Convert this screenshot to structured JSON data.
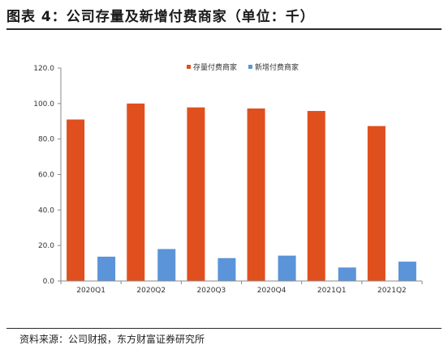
{
  "header": {
    "title": "图表 4：公司存量及新增付费商家（单位：千）"
  },
  "footer": {
    "source": "资料来源：公司财报，东方财富证券研究所"
  },
  "chart_data": {
    "type": "bar",
    "categories": [
      "2020Q1",
      "2020Q2",
      "2020Q3",
      "2020Q4",
      "2021Q1",
      "2021Q2"
    ],
    "series": [
      {
        "name": "存量付费商家",
        "color": "#e0501e",
        "values": [
          91.0,
          100.0,
          97.8,
          97.2,
          95.8,
          87.3
        ]
      },
      {
        "name": "新增付费商家",
        "color": "#5b94d9",
        "values": [
          13.7,
          18.0,
          12.9,
          14.3,
          7.6,
          10.9
        ]
      }
    ],
    "ylim": [
      0,
      120
    ],
    "yticks": [
      "0.0",
      "20.0",
      "40.0",
      "60.0",
      "80.0",
      "100.0",
      "120.0"
    ],
    "legend_position": "top-right",
    "grid": false
  }
}
